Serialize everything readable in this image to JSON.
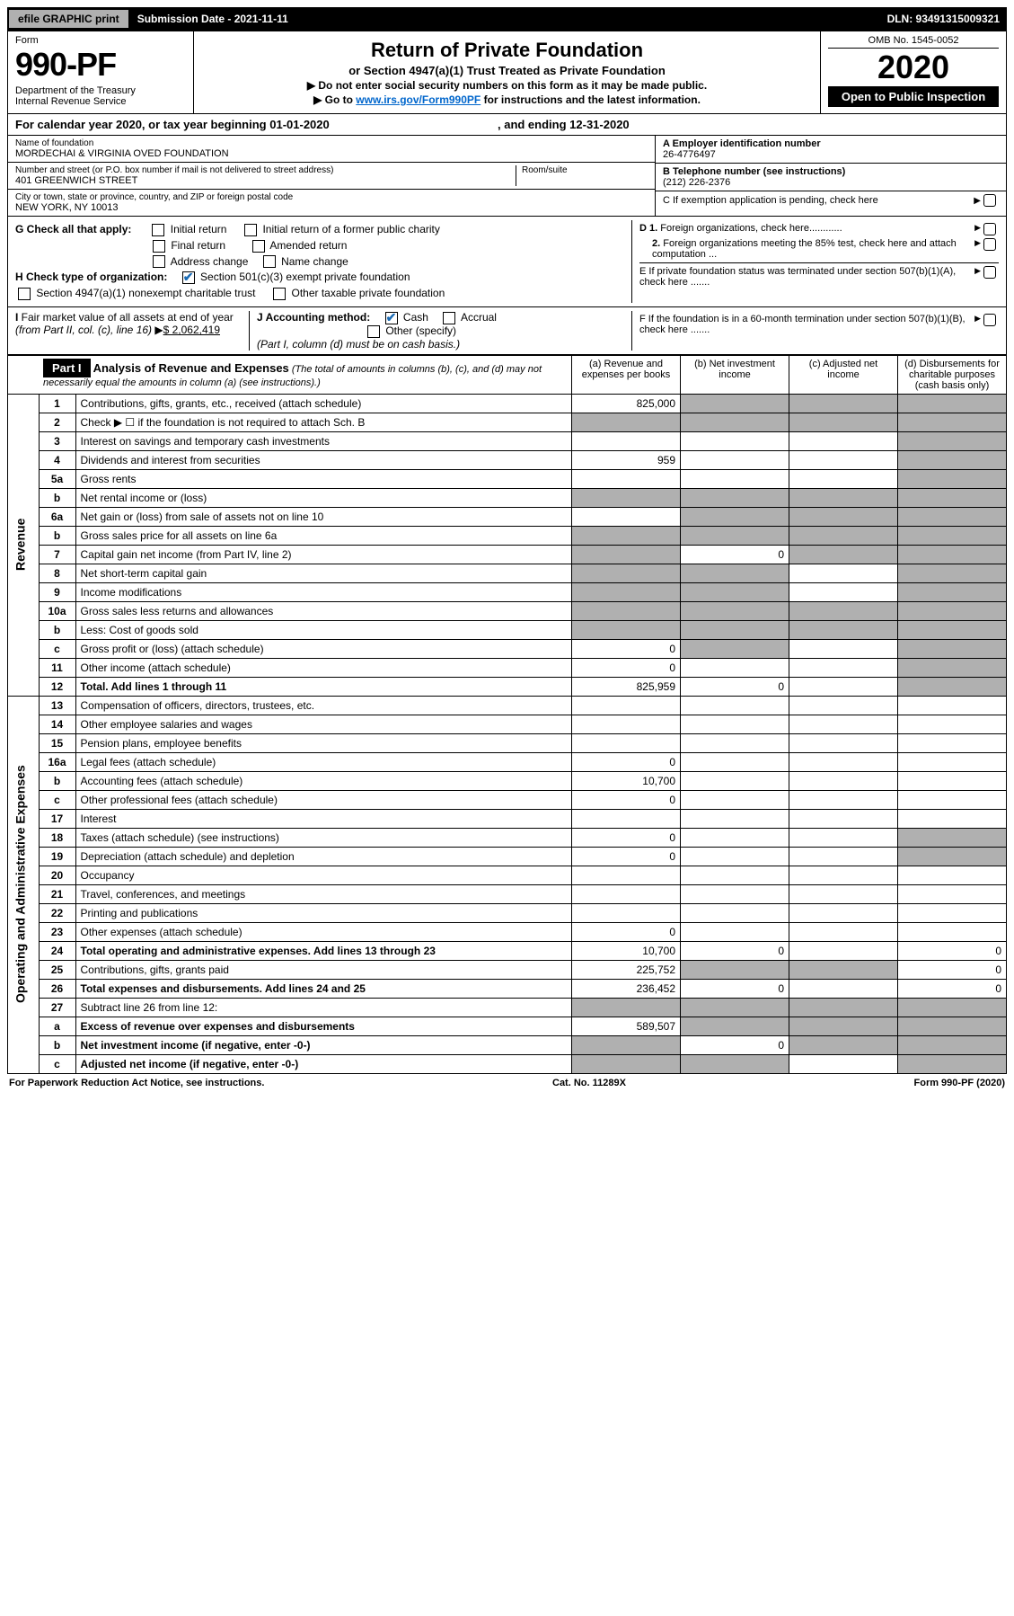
{
  "top": {
    "efile": "efile GRAPHIC print",
    "subdate_label": "Submission Date - 2021-11-11",
    "dln": "DLN: 93491315009321"
  },
  "header": {
    "form_label": "Form",
    "form_number": "990-PF",
    "dept": "Department of the Treasury\nInternal Revenue Service",
    "title": "Return of Private Foundation",
    "subtitle": "or Section 4947(a)(1) Trust Treated as Private Foundation",
    "instr1": "▶ Do not enter social security numbers on this form as it may be made public.",
    "instr2_pre": "▶ Go to ",
    "instr2_link": "www.irs.gov/Form990PF",
    "instr2_post": " for instructions and the latest information.",
    "omb": "OMB No. 1545-0052",
    "year": "2020",
    "open": "Open to Public Inspection"
  },
  "cal_year": {
    "pre": "For calendar year 2020, or tax year beginning ",
    "begin": "01-01-2020",
    "mid": " , and ending ",
    "end": "12-31-2020"
  },
  "info": {
    "name_label": "Name of foundation",
    "name": "MORDECHAI & VIRGINIA OVED FOUNDATION",
    "addr_label": "Number and street (or P.O. box number if mail is not delivered to street address)",
    "addr": "401 GREENWICH STREET",
    "room_label": "Room/suite",
    "city_label": "City or town, state or province, country, and ZIP or foreign postal code",
    "city": "NEW YORK, NY  10013",
    "ein_label": "A Employer identification number",
    "ein": "26-4776497",
    "tel_label": "B Telephone number (see instructions)",
    "tel": "(212) 226-2376",
    "pending": "C If exemption application is pending, check here",
    "d1": "D 1. Foreign organizations, check here............",
    "d2": "2. Foreign organizations meeting the 85% test, check here and attach computation ...",
    "e": "E If private foundation status was terminated under section 507(b)(1)(A), check here .......",
    "f": "F If the foundation is in a 60-month termination under section 507(b)(1)(B), check here .......",
    "g_label": "G Check all that apply:",
    "g_opts": [
      "Initial return",
      "Initial return of a former public charity",
      "Final return",
      "Amended return",
      "Address change",
      "Name change"
    ],
    "h_label": "H Check type of organization:",
    "h_opt1": "Section 501(c)(3) exempt private foundation",
    "h_opt2": "Section 4947(a)(1) nonexempt charitable trust",
    "h_opt3": "Other taxable private foundation",
    "i_label": "I Fair market value of all assets at end of year (from Part II, col. (c), line 16) ▶",
    "i_val": "$  2,062,419",
    "j_label": "J Accounting method:",
    "j_cash": "Cash",
    "j_accrual": "Accrual",
    "j_other": "Other (specify)",
    "j_note": "(Part I, column (d) must be on cash basis.)"
  },
  "part1": {
    "label": "Part I",
    "title": "Analysis of Revenue and Expenses",
    "note": "(The total of amounts in columns (b), (c), and (d) may not necessarily equal the amounts in column (a) (see instructions).)",
    "col_a": "(a) Revenue and expenses per books",
    "col_b": "(b) Net investment income",
    "col_c": "(c) Adjusted net income",
    "col_d": "(d) Disbursements for charitable purposes (cash basis only)"
  },
  "vert": {
    "revenue": "Revenue",
    "expenses": "Operating and Administrative Expenses"
  },
  "rows": [
    {
      "n": "1",
      "l": "Contributions, gifts, grants, etc., received (attach schedule)",
      "a": "825,000",
      "b_shade": true,
      "c_shade": true,
      "d_shade": true
    },
    {
      "n": "2",
      "l": "Check ▶ ☐ if the foundation is not required to attach Sch. B",
      "a_shade": true,
      "b_shade": true,
      "c_shade": true,
      "d_shade": true
    },
    {
      "n": "3",
      "l": "Interest on savings and temporary cash investments",
      "d_shade": true
    },
    {
      "n": "4",
      "l": "Dividends and interest from securities",
      "a": "959",
      "d_shade": true
    },
    {
      "n": "5a",
      "l": "Gross rents",
      "d_shade": true
    },
    {
      "n": "b",
      "l": "Net rental income or (loss)",
      "a_shade": true,
      "b_shade": true,
      "c_shade": true,
      "d_shade": true
    },
    {
      "n": "6a",
      "l": "Net gain or (loss) from sale of assets not on line 10",
      "b_shade": true,
      "c_shade": true,
      "d_shade": true
    },
    {
      "n": "b",
      "l": "Gross sales price for all assets on line 6a",
      "a_shade": true,
      "b_shade": true,
      "c_shade": true,
      "d_shade": true
    },
    {
      "n": "7",
      "l": "Capital gain net income (from Part IV, line 2)",
      "a_shade": true,
      "b": "0",
      "c_shade": true,
      "d_shade": true
    },
    {
      "n": "8",
      "l": "Net short-term capital gain",
      "a_shade": true,
      "b_shade": true,
      "d_shade": true
    },
    {
      "n": "9",
      "l": "Income modifications",
      "a_shade": true,
      "b_shade": true,
      "d_shade": true
    },
    {
      "n": "10a",
      "l": "Gross sales less returns and allowances",
      "a_shade": true,
      "b_shade": true,
      "c_shade": true,
      "d_shade": true
    },
    {
      "n": "b",
      "l": "Less: Cost of goods sold",
      "a_shade": true,
      "b_shade": true,
      "c_shade": true,
      "d_shade": true
    },
    {
      "n": "c",
      "l": "Gross profit or (loss) (attach schedule)",
      "a": "0",
      "b_shade": true,
      "d_shade": true
    },
    {
      "n": "11",
      "l": "Other income (attach schedule)",
      "a": "0",
      "d_shade": true
    },
    {
      "n": "12",
      "l": "Total. Add lines 1 through 11",
      "a": "825,959",
      "b": "0",
      "d_shade": true,
      "bold": true
    },
    {
      "n": "13",
      "l": "Compensation of officers, directors, trustees, etc.",
      "sec": "exp"
    },
    {
      "n": "14",
      "l": "Other employee salaries and wages"
    },
    {
      "n": "15",
      "l": "Pension plans, employee benefits"
    },
    {
      "n": "16a",
      "l": "Legal fees (attach schedule)",
      "a": "0"
    },
    {
      "n": "b",
      "l": "Accounting fees (attach schedule)",
      "a": "10,700"
    },
    {
      "n": "c",
      "l": "Other professional fees (attach schedule)",
      "a": "0"
    },
    {
      "n": "17",
      "l": "Interest"
    },
    {
      "n": "18",
      "l": "Taxes (attach schedule) (see instructions)",
      "a": "0",
      "d_shade": true
    },
    {
      "n": "19",
      "l": "Depreciation (attach schedule) and depletion",
      "a": "0",
      "d_shade": true
    },
    {
      "n": "20",
      "l": "Occupancy"
    },
    {
      "n": "21",
      "l": "Travel, conferences, and meetings"
    },
    {
      "n": "22",
      "l": "Printing and publications"
    },
    {
      "n": "23",
      "l": "Other expenses (attach schedule)",
      "a": "0"
    },
    {
      "n": "24",
      "l": "Total operating and administrative expenses. Add lines 13 through 23",
      "a": "10,700",
      "b": "0",
      "d": "0",
      "bold": true
    },
    {
      "n": "25",
      "l": "Contributions, gifts, grants paid",
      "a": "225,752",
      "b_shade": true,
      "c_shade": true,
      "d": "0"
    },
    {
      "n": "26",
      "l": "Total expenses and disbursements. Add lines 24 and 25",
      "a": "236,452",
      "b": "0",
      "d": "0",
      "bold": true
    },
    {
      "n": "27",
      "l": "Subtract line 26 from line 12:",
      "a_shade": true,
      "b_shade": true,
      "c_shade": true,
      "d_shade": true
    },
    {
      "n": "a",
      "l": "Excess of revenue over expenses and disbursements",
      "a": "589,507",
      "b_shade": true,
      "c_shade": true,
      "d_shade": true,
      "bold": true
    },
    {
      "n": "b",
      "l": "Net investment income (if negative, enter -0-)",
      "a_shade": true,
      "b": "0",
      "c_shade": true,
      "d_shade": true,
      "bold": true
    },
    {
      "n": "c",
      "l": "Adjusted net income (if negative, enter -0-)",
      "a_shade": true,
      "b_shade": true,
      "d_shade": true,
      "bold": true
    }
  ],
  "footer": {
    "left": "For Paperwork Reduction Act Notice, see instructions.",
    "mid": "Cat. No. 11289X",
    "right": "Form 990-PF (2020)"
  }
}
